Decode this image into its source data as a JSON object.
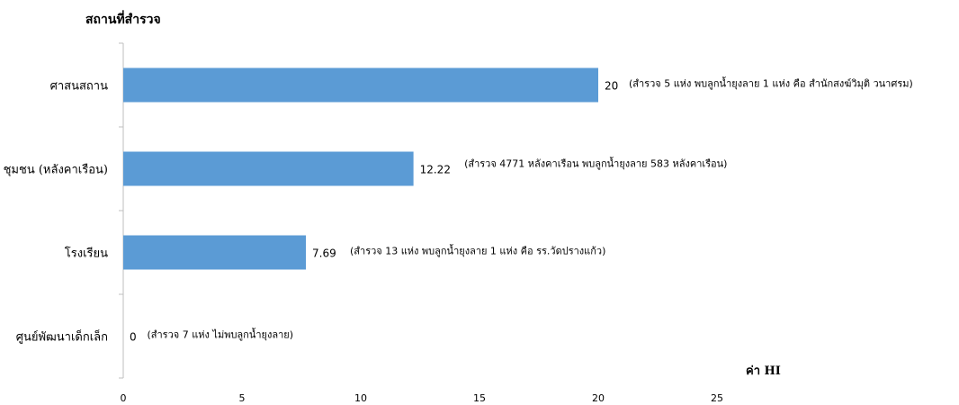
{
  "chart_data": {
    "type": "bar",
    "orientation": "horizontal",
    "ylabel": "สถานที่สำรวจ",
    "xlabel": "ค่า HI",
    "xlim": [
      0,
      25
    ],
    "xticks": [
      0,
      5,
      10,
      15,
      20,
      25
    ],
    "categories": [
      "ศาสนสถาน",
      "ชุมชน (หลังคาเรือน)",
      "โรงเรียน",
      "ศูนย์พัฒนาเด็กเล็ก"
    ],
    "values": [
      20,
      12.22,
      7.69,
      0
    ],
    "value_labels": [
      "20",
      "12.22",
      "7.69",
      "0"
    ],
    "annotations": [
      "(สำรวจ 5 แห่ง พบลูกน้ำยุงลาย 1 แห่ง คือ สำนักสงฆ์วิมุติ วนาศรม)",
      "(สำรวจ 4771 หลังคาเรือน พบลูกน้ำยุงลาย  583 หลังคาเรือน)",
      "(สำรวจ 13 แห่ง พบลูกน้ำยุงลาย 1 แห่ง คือ รร.วัดปรางแก้ว)",
      "(สำรวจ 7 แห่ง ไม่พบลูกน้ำยุงลาย)"
    ],
    "grid": false,
    "legend": "none",
    "colors": {
      "bar": "#5b9bd5",
      "axis": "#bfbfbf",
      "text": "#000000"
    }
  }
}
